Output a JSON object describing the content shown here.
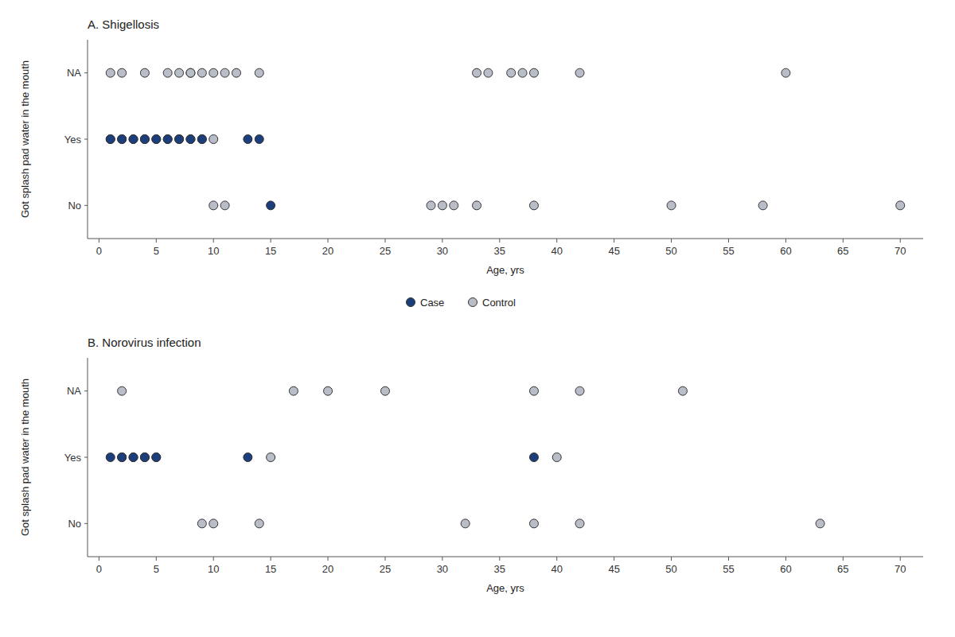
{
  "chart_data": [
    {
      "type": "scatter",
      "title": "A. Shigellosis",
      "x_label": "Age, yrs",
      "y_label": "Got splash pad water in the mouth",
      "xlim": [
        -1,
        72
      ],
      "ylim": [
        -0.5,
        2.5
      ],
      "xticks": [
        0,
        5,
        10,
        15,
        20,
        25,
        30,
        35,
        40,
        45,
        50,
        55,
        60,
        65,
        70
      ],
      "yticks": [
        {
          "value": 0,
          "label": "No"
        },
        {
          "value": 1,
          "label": "Yes"
        },
        {
          "value": 2,
          "label": "NA"
        }
      ],
      "grid": false,
      "legend": "bottom",
      "series": [
        {
          "name": "Case",
          "color": "#1c3f7c",
          "x": [
            1,
            2,
            3,
            4,
            5,
            6,
            7,
            8,
            9,
            13,
            14,
            15
          ],
          "values": [
            1,
            1,
            1,
            1,
            1,
            1,
            1,
            1,
            1,
            1,
            1,
            0
          ]
        },
        {
          "name": "Control",
          "color": "#b8bdc8",
          "x": [
            1,
            2,
            4,
            6,
            7,
            8,
            8,
            9,
            10,
            11,
            12,
            14,
            33,
            34,
            36,
            37,
            38,
            42,
            60,
            1,
            2,
            3,
            4,
            5,
            6,
            7,
            8,
            9,
            10,
            10,
            11,
            29,
            30,
            31,
            33,
            38,
            50,
            58,
            70
          ],
          "values": [
            2,
            2,
            2,
            2,
            2,
            2,
            2,
            2,
            2,
            2,
            2,
            2,
            2,
            2,
            2,
            2,
            2,
            2,
            2,
            1,
            1,
            1,
            1,
            1,
            1,
            1,
            1,
            1,
            1,
            0,
            0,
            0,
            0,
            0,
            0,
            0,
            0,
            0,
            0
          ]
        }
      ]
    },
    {
      "type": "scatter",
      "title": "B. Norovirus infection",
      "x_label": "Age, yrs",
      "y_label": "Got splash pad water in the mouth",
      "xlim": [
        -1,
        72
      ],
      "ylim": [
        -0.5,
        2.5
      ],
      "xticks": [
        0,
        5,
        10,
        15,
        20,
        25,
        30,
        35,
        40,
        45,
        50,
        55,
        60,
        65,
        70
      ],
      "yticks": [
        {
          "value": 0,
          "label": "No"
        },
        {
          "value": 1,
          "label": "Yes"
        },
        {
          "value": 2,
          "label": "NA"
        }
      ],
      "grid": false,
      "series": [
        {
          "name": "Case",
          "color": "#1c3f7c",
          "x": [
            1,
            2,
            3,
            4,
            5,
            13,
            38
          ],
          "values": [
            1,
            1,
            1,
            1,
            1,
            1,
            1
          ]
        },
        {
          "name": "Control",
          "color": "#b8bdc8",
          "x": [
            2,
            17,
            20,
            25,
            38,
            42,
            51,
            2,
            3,
            4,
            5,
            15,
            40,
            9,
            10,
            14,
            32,
            38,
            42,
            63
          ],
          "values": [
            2,
            2,
            2,
            2,
            2,
            2,
            2,
            1,
            1,
            1,
            1,
            1,
            1,
            0,
            0,
            0,
            0,
            0,
            0,
            0
          ]
        }
      ]
    }
  ]
}
